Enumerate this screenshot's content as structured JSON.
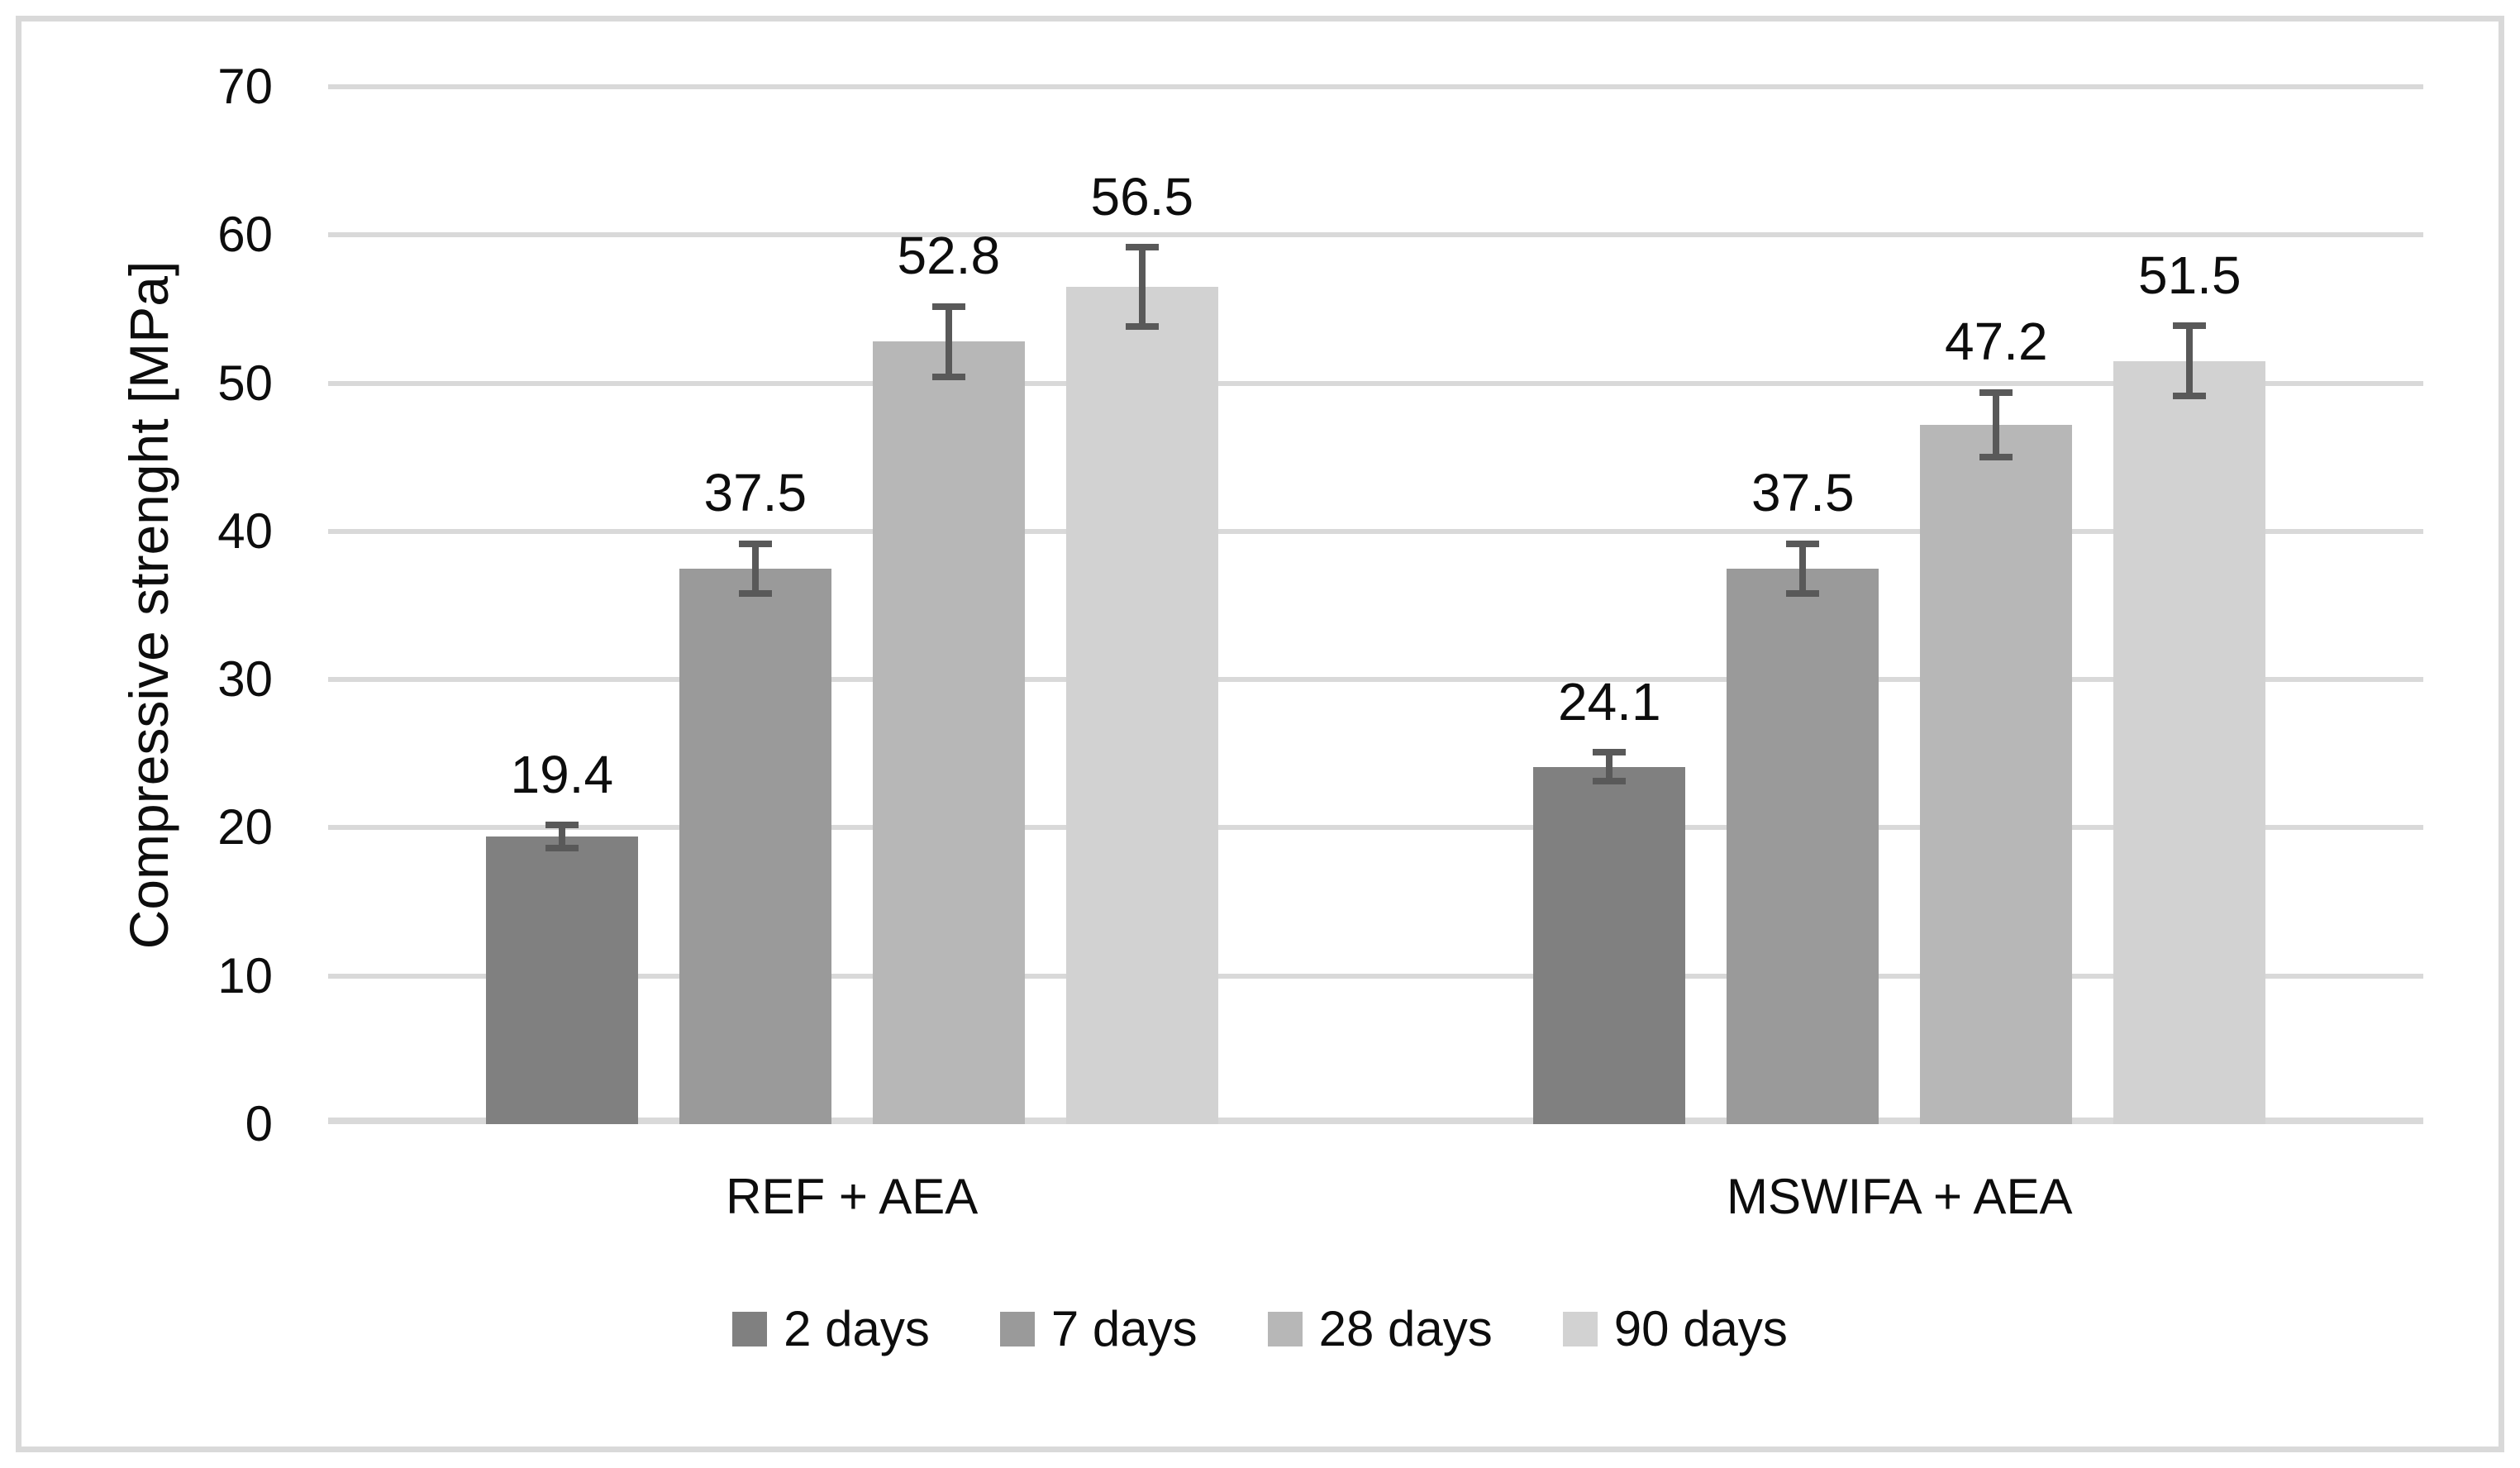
{
  "figure": {
    "background": "#ffffff",
    "border_color": "#d9d9d9"
  },
  "chart_data": {
    "type": "bar",
    "title": "",
    "xlabel": "",
    "ylabel": "Compressive strenght [MPa]",
    "ylim": [
      0,
      70
    ],
    "yticks": [
      0,
      10,
      20,
      30,
      40,
      50,
      60,
      70
    ],
    "grid": "horizontal",
    "gridline_color": "#d9d9d9",
    "error_bar_color": "#595959",
    "legend_position": "bottom",
    "value_labels_shown": true,
    "categories": [
      "REF + AEA",
      "MSWIFA + AEA"
    ],
    "series": [
      {
        "name": "2 days",
        "color": "#808080",
        "values": [
          19.4,
          24.1
        ],
        "errors": [
          1.0,
          1.2
        ]
      },
      {
        "name": "7 days",
        "color": "#9a9a9a",
        "values": [
          37.5,
          37.5
        ],
        "errors": [
          1.9,
          1.9
        ]
      },
      {
        "name": "28 days",
        "color": "#b7b7b7",
        "values": [
          52.8,
          47.2
        ],
        "errors": [
          2.6,
          2.4
        ]
      },
      {
        "name": "90 days",
        "color": "#d2d2d2",
        "values": [
          56.5,
          51.5
        ],
        "errors": [
          2.9,
          2.6
        ]
      }
    ],
    "value_label_texts": [
      [
        "19.4",
        "37.5",
        "52.8",
        "56.5"
      ],
      [
        "24.1",
        "37.5",
        "47.2",
        "51.5"
      ]
    ]
  }
}
